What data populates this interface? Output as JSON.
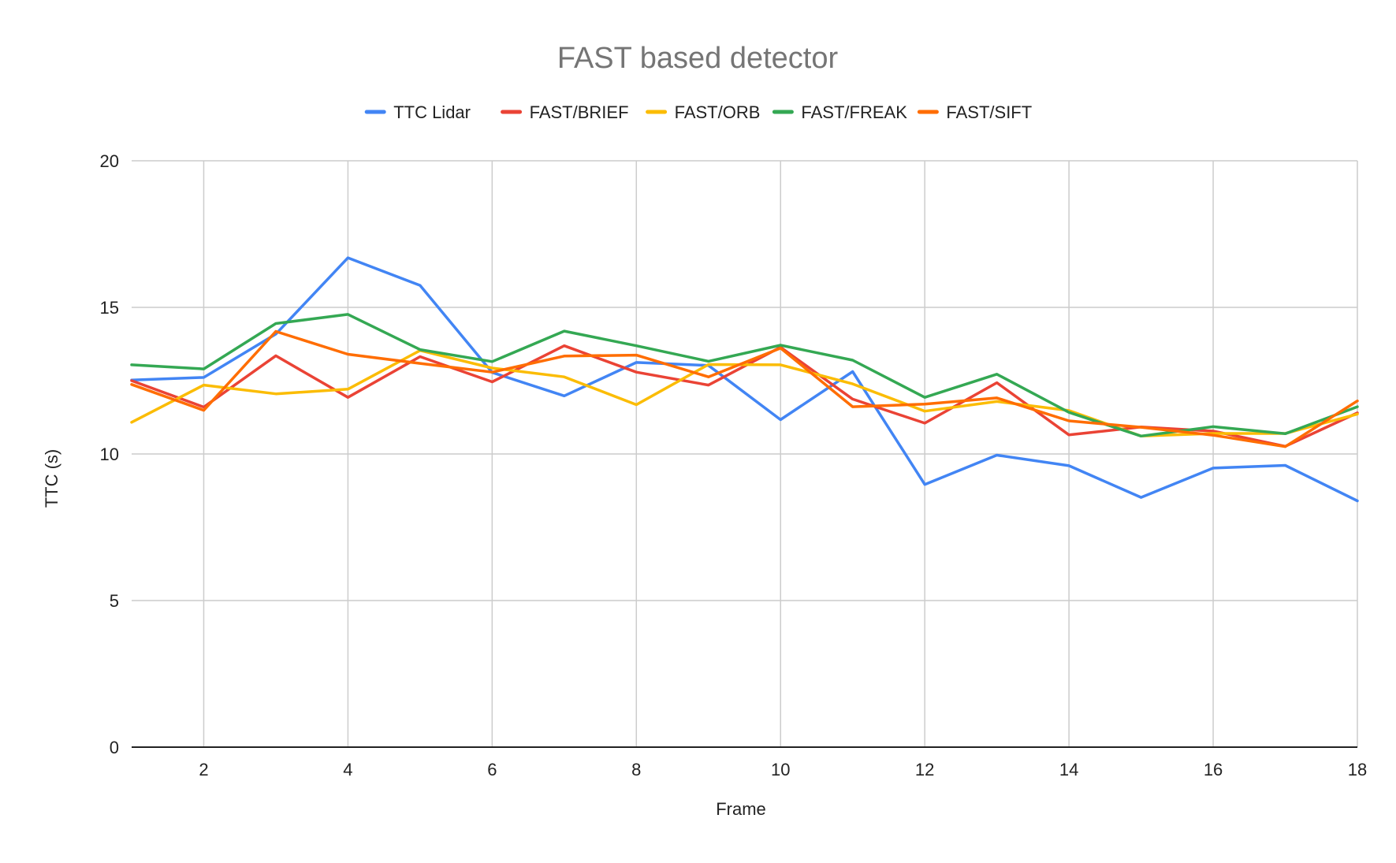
{
  "chart_data": {
    "type": "line",
    "title": "FAST based detector",
    "xlabel": "Frame",
    "ylabel": "TTC (s)",
    "x": [
      1,
      2,
      3,
      4,
      5,
      6,
      7,
      8,
      9,
      10,
      11,
      12,
      13,
      14,
      15,
      16,
      17,
      18
    ],
    "xlim": [
      1,
      18
    ],
    "ylim": [
      0,
      20
    ],
    "xticks": [
      2,
      4,
      6,
      8,
      10,
      12,
      14,
      16,
      18
    ],
    "yticks": [
      0,
      5,
      10,
      15,
      20
    ],
    "grid": true,
    "legend_position": "top",
    "series": [
      {
        "name": "TTC Lidar",
        "color": "#4285f4",
        "values": [
          12.52,
          12.61,
          14.09,
          16.69,
          15.75,
          12.78,
          11.98,
          13.12,
          13.02,
          11.17,
          12.81,
          8.96,
          9.96,
          9.6,
          8.52,
          9.52,
          9.61,
          8.4
        ]
      },
      {
        "name": "FAST/BRIEF",
        "color": "#ea4335",
        "values": [
          12.5,
          11.6,
          13.35,
          11.93,
          13.32,
          12.46,
          13.69,
          12.79,
          12.35,
          13.64,
          11.87,
          11.05,
          12.43,
          10.65,
          10.92,
          10.78,
          10.26,
          11.4
        ]
      },
      {
        "name": "FAST/ORB",
        "color": "#fbbc04",
        "values": [
          11.08,
          12.35,
          12.05,
          12.21,
          13.53,
          12.93,
          12.63,
          11.68,
          13.05,
          13.04,
          12.39,
          11.46,
          11.79,
          11.48,
          10.61,
          10.7,
          10.7,
          11.36
        ]
      },
      {
        "name": "FAST/FREAK",
        "color": "#34a853",
        "values": [
          13.04,
          12.9,
          14.45,
          14.76,
          13.56,
          13.15,
          14.19,
          13.69,
          13.16,
          13.71,
          13.2,
          11.93,
          12.72,
          11.42,
          10.61,
          10.93,
          10.69,
          11.61
        ]
      },
      {
        "name": "FAST/SIFT",
        "color": "#ff6d01",
        "values": [
          12.37,
          11.49,
          14.18,
          13.4,
          13.09,
          12.79,
          13.34,
          13.37,
          12.63,
          13.61,
          11.61,
          11.7,
          11.91,
          11.13,
          10.91,
          10.64,
          10.25,
          11.81
        ]
      }
    ]
  }
}
